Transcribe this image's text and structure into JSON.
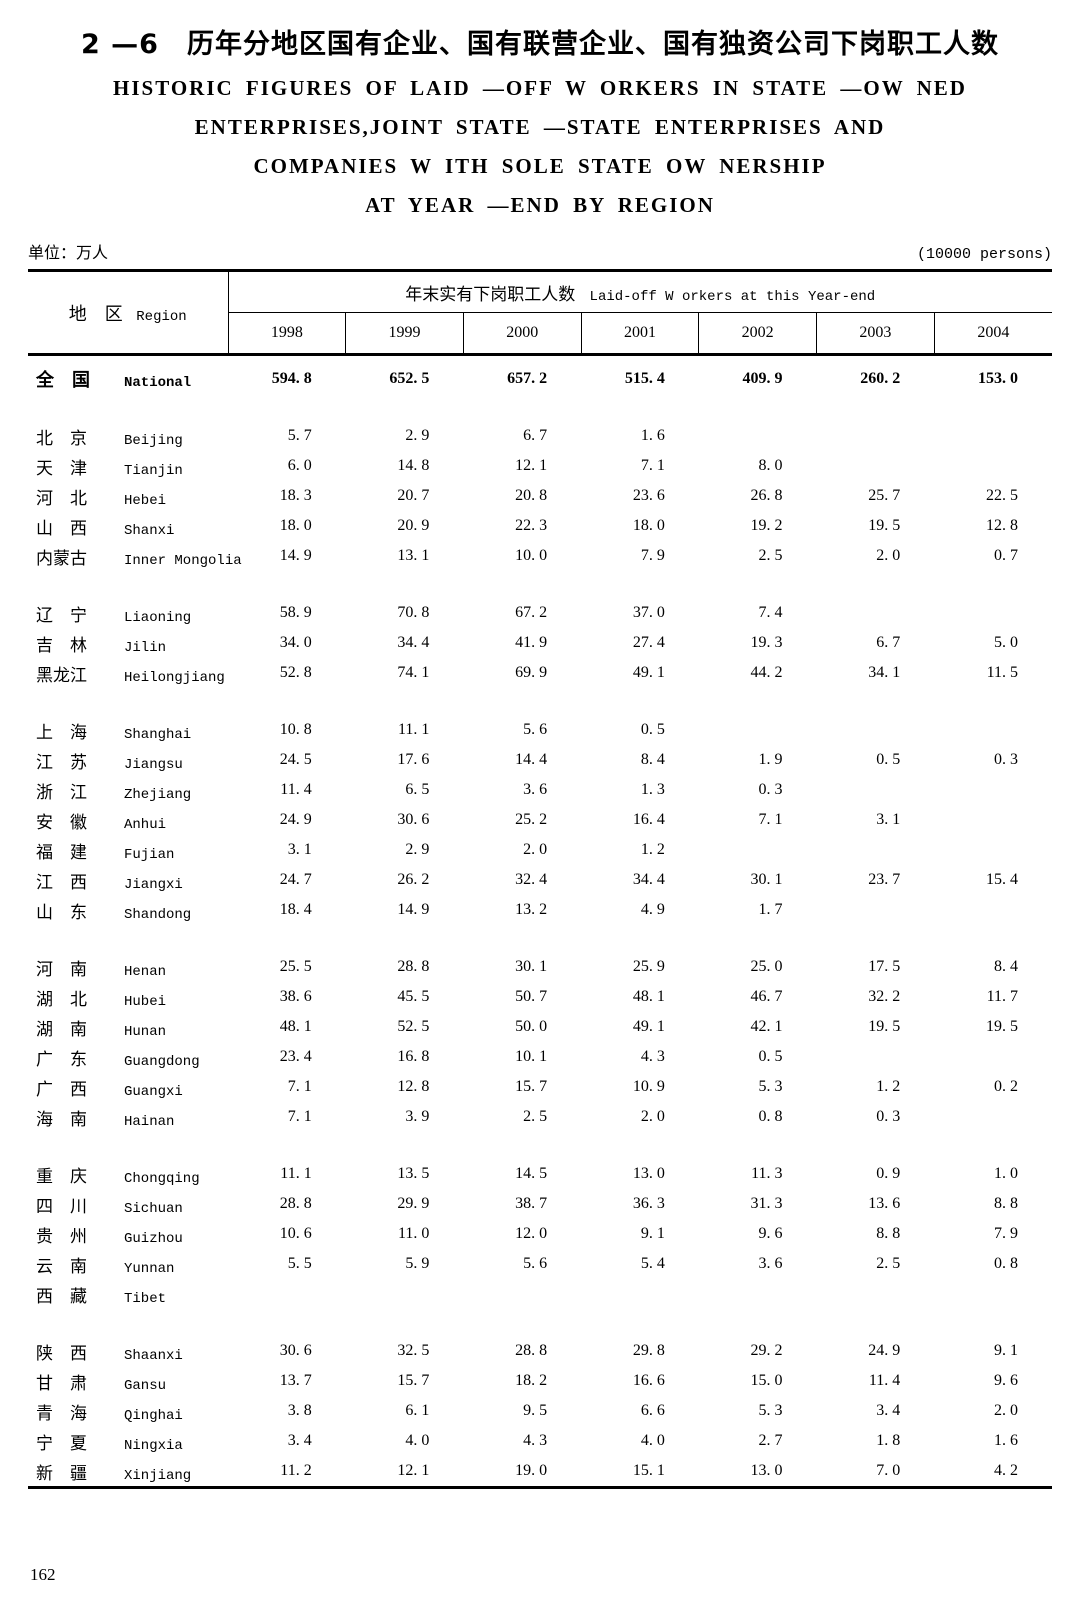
{
  "page": {
    "title_cn": "2 —6　历年分地区国有企业、国有联营企业、国有独资公司下岗职工人数",
    "title_en_lines": [
      "HISTORIC FIGURES OF LAID —OFF W ORKERS IN STATE —OW NED",
      "ENTERPRISES,JOINT STATE —STATE ENTERPRISES AND",
      "COMPANIES W ITH SOLE STATE OW NERSHIP",
      "AT YEAR —END BY REGION"
    ],
    "unit_left": "单位：万人",
    "unit_right": "(10000 persons)",
    "page_number": "162"
  },
  "table": {
    "region_header_cn": "地　区",
    "region_header_en": "Region",
    "span_header_cn": "年末实有下岗职工人数",
    "span_header_en": "Laid-off W orkers at this Year-end",
    "years": [
      "1998",
      "1999",
      "2000",
      "2001",
      "2002",
      "2003",
      "2004"
    ],
    "rows": [
      {
        "cn": "全　国",
        "en": "National",
        "bold": true,
        "values": [
          "594. 8",
          "652. 5",
          "657. 2",
          "515. 4",
          "409. 9",
          "260. 2",
          "153. 0"
        ]
      },
      {
        "gap": true
      },
      {
        "cn": "北　京",
        "en": "Beijing",
        "values": [
          "5. 7",
          "2. 9",
          "6. 7",
          "1. 6",
          "",
          "",
          ""
        ]
      },
      {
        "cn": "天　津",
        "en": "Tianjin",
        "values": [
          "6. 0",
          "14. 8",
          "12. 1",
          "7. 1",
          "8. 0",
          "",
          ""
        ]
      },
      {
        "cn": "河　北",
        "en": "Hebei",
        "values": [
          "18. 3",
          "20. 7",
          "20. 8",
          "23. 6",
          "26. 8",
          "25. 7",
          "22. 5"
        ]
      },
      {
        "cn": "山　西",
        "en": "Shanxi",
        "values": [
          "18. 0",
          "20. 9",
          "22. 3",
          "18. 0",
          "19. 2",
          "19. 5",
          "12. 8"
        ]
      },
      {
        "cn": "内蒙古",
        "en": "Inner Mongolia",
        "values": [
          "14. 9",
          "13. 1",
          "10. 0",
          "7. 9",
          "2. 5",
          "2. 0",
          "0. 7"
        ]
      },
      {
        "gap": true
      },
      {
        "cn": "辽　宁",
        "en": "Liaoning",
        "values": [
          "58. 9",
          "70. 8",
          "67. 2",
          "37. 0",
          "7. 4",
          "",
          ""
        ]
      },
      {
        "cn": "吉　林",
        "en": "Jilin",
        "values": [
          "34. 0",
          "34. 4",
          "41. 9",
          "27. 4",
          "19. 3",
          "6. 7",
          "5. 0"
        ]
      },
      {
        "cn": "黑龙江",
        "en": "Heilongjiang",
        "values": [
          "52. 8",
          "74. 1",
          "69. 9",
          "49. 1",
          "44. 2",
          "34. 1",
          "11. 5"
        ]
      },
      {
        "gap": true
      },
      {
        "cn": "上　海",
        "en": "Shanghai",
        "values": [
          "10. 8",
          "11. 1",
          "5. 6",
          "0. 5",
          "",
          "",
          ""
        ]
      },
      {
        "cn": "江　苏",
        "en": "Jiangsu",
        "values": [
          "24. 5",
          "17. 6",
          "14. 4",
          "8. 4",
          "1. 9",
          "0. 5",
          "0. 3"
        ]
      },
      {
        "cn": "浙　江",
        "en": "Zhejiang",
        "values": [
          "11. 4",
          "6. 5",
          "3. 6",
          "1. 3",
          "0. 3",
          "",
          ""
        ]
      },
      {
        "cn": "安　徽",
        "en": "Anhui",
        "values": [
          "24. 9",
          "30. 6",
          "25. 2",
          "16. 4",
          "7. 1",
          "3. 1",
          ""
        ]
      },
      {
        "cn": "福　建",
        "en": "Fujian",
        "values": [
          "3. 1",
          "2. 9",
          "2. 0",
          "1. 2",
          "",
          "",
          ""
        ]
      },
      {
        "cn": "江　西",
        "en": "Jiangxi",
        "values": [
          "24. 7",
          "26. 2",
          "32. 4",
          "34. 4",
          "30. 1",
          "23. 7",
          "15. 4"
        ]
      },
      {
        "cn": "山　东",
        "en": "Shandong",
        "values": [
          "18. 4",
          "14. 9",
          "13. 2",
          "4. 9",
          "1. 7",
          "",
          ""
        ]
      },
      {
        "gap": true
      },
      {
        "cn": "河　南",
        "en": "Henan",
        "values": [
          "25. 5",
          "28. 8",
          "30. 1",
          "25. 9",
          "25. 0",
          "17. 5",
          "8. 4"
        ]
      },
      {
        "cn": "湖　北",
        "en": "Hubei",
        "values": [
          "38. 6",
          "45. 5",
          "50. 7",
          "48. 1",
          "46. 7",
          "32. 2",
          "11. 7"
        ]
      },
      {
        "cn": "湖　南",
        "en": "Hunan",
        "values": [
          "48. 1",
          "52. 5",
          "50. 0",
          "49. 1",
          "42. 1",
          "19. 5",
          "19. 5"
        ]
      },
      {
        "cn": "广　东",
        "en": "Guangdong",
        "values": [
          "23. 4",
          "16. 8",
          "10. 1",
          "4. 3",
          "0. 5",
          "",
          ""
        ]
      },
      {
        "cn": "广　西",
        "en": "Guangxi",
        "values": [
          "7. 1",
          "12. 8",
          "15. 7",
          "10. 9",
          "5. 3",
          "1. 2",
          "0. 2"
        ]
      },
      {
        "cn": "海　南",
        "en": "Hainan",
        "values": [
          "7. 1",
          "3. 9",
          "2. 5",
          "2. 0",
          "0. 8",
          "0. 3",
          ""
        ]
      },
      {
        "gap": true
      },
      {
        "cn": "重　庆",
        "en": "Chongqing",
        "values": [
          "11. 1",
          "13. 5",
          "14. 5",
          "13. 0",
          "11. 3",
          "0. 9",
          "1. 0"
        ]
      },
      {
        "cn": "四　川",
        "en": "Sichuan",
        "values": [
          "28. 8",
          "29. 9",
          "38. 7",
          "36. 3",
          "31. 3",
          "13. 6",
          "8. 8"
        ]
      },
      {
        "cn": "贵　州",
        "en": "Guizhou",
        "values": [
          "10. 6",
          "11. 0",
          "12. 0",
          "9. 1",
          "9. 6",
          "8. 8",
          "7. 9"
        ]
      },
      {
        "cn": "云　南",
        "en": "Yunnan",
        "values": [
          "5. 5",
          "5. 9",
          "5. 6",
          "5. 4",
          "3. 6",
          "2. 5",
          "0. 8"
        ]
      },
      {
        "cn": "西　藏",
        "en": "Tibet",
        "values": [
          "",
          "",
          "",
          "",
          "",
          "",
          ""
        ]
      },
      {
        "gap": true
      },
      {
        "cn": "陕　西",
        "en": "Shaanxi",
        "values": [
          "30. 6",
          "32. 5",
          "28. 8",
          "29. 8",
          "29. 2",
          "24. 9",
          "9. 1"
        ]
      },
      {
        "cn": "甘　肃",
        "en": "Gansu",
        "values": [
          "13. 7",
          "15. 7",
          "18. 2",
          "16. 6",
          "15. 0",
          "11. 4",
          "9. 6"
        ]
      },
      {
        "cn": "青　海",
        "en": "Qinghai",
        "values": [
          "3. 8",
          "6. 1",
          "9. 5",
          "6. 6",
          "5. 3",
          "3. 4",
          "2. 0"
        ]
      },
      {
        "cn": "宁　夏",
        "en": "Ningxia",
        "values": [
          "3. 4",
          "4. 0",
          "4. 3",
          "4. 0",
          "2. 7",
          "1. 8",
          "1. 6"
        ]
      },
      {
        "cn": "新　疆",
        "en": "Xinjiang",
        "values": [
          "11. 2",
          "12. 1",
          "19. 0",
          "15. 1",
          "13. 0",
          "7. 0",
          "4. 2"
        ]
      }
    ]
  }
}
